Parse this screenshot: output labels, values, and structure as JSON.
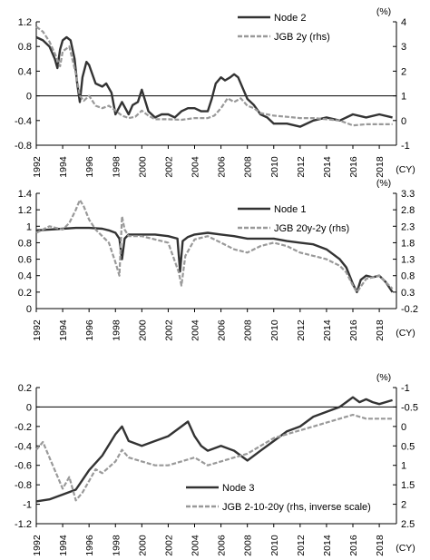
{
  "chart_data": [
    {
      "type": "line",
      "x_ticks": [
        "1992",
        "1994",
        "1996",
        "1998",
        "2000",
        "2002",
        "2004",
        "2006",
        "2008",
        "2010",
        "2012",
        "2014",
        "2016",
        "2018"
      ],
      "x_unit": "(CY)",
      "left_axis": {
        "ticks": [
          "1.2",
          "0.8",
          "0.4",
          "0",
          "-0.4",
          "-0.8"
        ],
        "ylim": [
          -0.8,
          1.2
        ]
      },
      "right_axis": {
        "unit": "(%)",
        "ticks": [
          "4",
          "3",
          "2",
          "1",
          "0",
          "-1"
        ],
        "ylim": [
          -1,
          4
        ]
      },
      "grid": false,
      "legend_position": "top-right",
      "series": [
        {
          "name": "Node 2",
          "axis": "left",
          "color": "#333333",
          "dash": "solid",
          "x": [
            1992,
            1992.5,
            1993,
            1993.4,
            1993.6,
            1993.8,
            1994,
            1994.3,
            1994.6,
            1994.9,
            1995.1,
            1995.3,
            1995.5,
            1995.8,
            1996,
            1996.5,
            1997,
            1997.3,
            1997.7,
            1998,
            1998.5,
            1999,
            1999.3,
            1999.7,
            2000,
            2000.5,
            2001,
            2001.5,
            2002,
            2002.5,
            2003,
            2003.5,
            2004,
            2004.5,
            2005,
            2005.3,
            2005.6,
            2006,
            2006.3,
            2006.7,
            2007,
            2007.3,
            2007.7,
            2008,
            2008.5,
            2009,
            2009.5,
            2010,
            2011,
            2012,
            2013,
            2014,
            2015,
            2016,
            2017,
            2018,
            2019
          ],
          "values": [
            0.95,
            0.9,
            0.8,
            0.6,
            0.45,
            0.75,
            0.9,
            0.95,
            0.9,
            0.6,
            0.2,
            -0.1,
            0.3,
            0.55,
            0.5,
            0.2,
            0.15,
            0.2,
            0.05,
            -0.3,
            -0.1,
            -0.3,
            -0.15,
            -0.1,
            0.1,
            -0.25,
            -0.35,
            -0.3,
            -0.3,
            -0.35,
            -0.25,
            -0.2,
            -0.2,
            -0.25,
            -0.25,
            -0.05,
            0.2,
            0.3,
            0.25,
            0.3,
            0.35,
            0.3,
            0.1,
            -0.05,
            -0.15,
            -0.3,
            -0.35,
            -0.45,
            -0.45,
            -0.5,
            -0.4,
            -0.35,
            -0.4,
            -0.3,
            -0.35,
            -0.3,
            -0.35
          ]
        },
        {
          "name": "JGB 2y (rhs)",
          "axis": "right",
          "color": "#999999",
          "dash": "dashed",
          "x": [
            1992,
            1992.5,
            1993,
            1993.5,
            1993.8,
            1994,
            1994.5,
            1995,
            1995.3,
            1995.6,
            1996,
            1996.5,
            1997,
            1997.5,
            1998,
            1998.5,
            1999,
            1999.5,
            2000,
            2000.5,
            2001,
            2002,
            2003,
            2004,
            2005,
            2005.5,
            2006,
            2006.5,
            2007,
            2007.5,
            2008,
            2008.5,
            2009,
            2010,
            2011,
            2012,
            2013,
            2014,
            2015,
            2016,
            2017,
            2018,
            2019
          ],
          "values": [
            3.8,
            3.6,
            3.2,
            2.6,
            2.2,
            2.8,
            3.0,
            1.9,
            1.0,
            0.8,
            1.0,
            0.6,
            0.5,
            0.6,
            0.4,
            0.2,
            0.1,
            0.15,
            0.4,
            0.2,
            0.05,
            0.05,
            0.03,
            0.1,
            0.1,
            0.2,
            0.5,
            0.9,
            0.75,
            0.9,
            0.6,
            0.5,
            0.3,
            0.2,
            0.15,
            0.1,
            0.1,
            0.05,
            0.0,
            -0.2,
            -0.15,
            -0.15,
            -0.15
          ]
        }
      ]
    },
    {
      "type": "line",
      "x_ticks": [
        "1992",
        "1994",
        "1996",
        "1998",
        "2000",
        "2002",
        "2004",
        "2006",
        "2008",
        "2010",
        "2012",
        "2014",
        "2016",
        "2018"
      ],
      "x_unit": "(CY)",
      "left_axis": {
        "ticks": [
          "1.4",
          "1.2",
          "1",
          "0.8",
          "0.6",
          "0.4",
          "0.2",
          "0"
        ],
        "ylim": [
          0,
          1.4
        ]
      },
      "right_axis": {
        "unit": "(%)",
        "ticks": [
          "3.3",
          "2.8",
          "2.3",
          "1.8",
          "1.3",
          "0.8",
          "0.3",
          "-0.2"
        ],
        "ylim": [
          -0.2,
          3.3
        ]
      },
      "grid": false,
      "legend_position": "top-right",
      "series": [
        {
          "name": "Node 1",
          "axis": "left",
          "color": "#333333",
          "dash": "solid",
          "x": [
            1992,
            1993,
            1994,
            1995,
            1996,
            1997,
            1997.5,
            1998,
            1998.3,
            1998.5,
            1998.7,
            1999,
            2000,
            2001,
            2002,
            2002.7,
            2002.9,
            2003.1,
            2003.5,
            2004,
            2005,
            2006,
            2007,
            2008,
            2009,
            2010,
            2011,
            2012,
            2013,
            2014,
            2015,
            2015.5,
            2016,
            2016.3,
            2016.6,
            2017,
            2017.5,
            2018,
            2018.5,
            2019
          ],
          "values": [
            0.95,
            0.96,
            0.97,
            0.98,
            0.98,
            0.97,
            0.95,
            0.92,
            0.85,
            0.6,
            0.85,
            0.9,
            0.9,
            0.9,
            0.88,
            0.85,
            0.45,
            0.82,
            0.87,
            0.9,
            0.92,
            0.9,
            0.88,
            0.85,
            0.85,
            0.85,
            0.82,
            0.8,
            0.78,
            0.72,
            0.6,
            0.5,
            0.3,
            0.2,
            0.35,
            0.4,
            0.38,
            0.4,
            0.32,
            0.2
          ]
        },
        {
          "name": "JGB 20y-2y (rhs)",
          "axis": "right",
          "color": "#999999",
          "dash": "dashed",
          "x": [
            1992,
            1993,
            1994,
            1994.5,
            1995,
            1995.3,
            1995.6,
            1996,
            1996.5,
            1997,
            1997.5,
            1998,
            1998.3,
            1998.5,
            1998.7,
            1999,
            2000,
            2001,
            2002,
            2002.8,
            2003,
            2003.3,
            2004,
            2005,
            2006,
            2007,
            2008,
            2009,
            2010,
            2011,
            2012,
            2013,
            2014,
            2015,
            2015.5,
            2016,
            2016.3,
            2017,
            2018,
            2018.5,
            2019
          ],
          "values": [
            2.1,
            2.3,
            2.2,
            2.4,
            2.8,
            3.1,
            2.9,
            2.5,
            2.2,
            2.0,
            1.8,
            1.2,
            0.8,
            2.6,
            2.2,
            2.0,
            2.0,
            1.9,
            1.8,
            0.9,
            0.5,
            1.4,
            1.9,
            2.0,
            1.8,
            1.6,
            1.5,
            1.7,
            1.8,
            1.7,
            1.5,
            1.4,
            1.3,
            1.1,
            0.9,
            0.5,
            0.3,
            0.7,
            0.8,
            0.6,
            0.4
          ]
        }
      ]
    },
    {
      "type": "line",
      "x_ticks": [
        "1992",
        "1994",
        "1996",
        "1998",
        "2000",
        "2002",
        "2004",
        "2006",
        "2008",
        "2010",
        "2012",
        "2014",
        "2016",
        "2018"
      ],
      "x_unit": "(CY)",
      "left_axis": {
        "ticks": [
          "0.2",
          "0",
          "-0.2",
          "-0.4",
          "-0.6",
          "-0.8",
          "-1",
          "-1.2"
        ],
        "ylim": [
          -1.2,
          0.2
        ]
      },
      "right_axis": {
        "unit": "(%)",
        "ticks": [
          "-1",
          "-0.5",
          "0",
          "0.5",
          "1",
          "1.5",
          "2",
          "2.5"
        ],
        "ylim": [
          2.5,
          -1
        ],
        "inverse": true
      },
      "grid": false,
      "legend_position": "bottom-right",
      "series": [
        {
          "name": "Node 3",
          "axis": "left",
          "color": "#333333",
          "dash": "solid",
          "x": [
            1992,
            1993,
            1994,
            1995,
            1995.5,
            1996,
            1997,
            1998,
            1998.5,
            1999,
            2000,
            2001,
            2002,
            2003,
            2003.5,
            2004,
            2004.5,
            2005,
            2006,
            2007,
            2008,
            2009,
            2010,
            2011,
            2012,
            2013,
            2014,
            2015,
            2015.5,
            2016,
            2016.5,
            2017,
            2017.5,
            2018,
            2019
          ],
          "values": [
            -0.97,
            -0.95,
            -0.9,
            -0.85,
            -0.75,
            -0.65,
            -0.5,
            -0.28,
            -0.2,
            -0.35,
            -0.4,
            -0.35,
            -0.3,
            -0.2,
            -0.15,
            -0.3,
            -0.4,
            -0.45,
            -0.4,
            -0.45,
            -0.55,
            -0.45,
            -0.35,
            -0.25,
            -0.2,
            -0.1,
            -0.05,
            0.0,
            0.05,
            0.1,
            0.05,
            0.08,
            0.05,
            0.03,
            0.07
          ]
        },
        {
          "name": "JGB 2-10-20y (rhs, inverse scale)",
          "axis": "right",
          "color": "#999999",
          "dash": "dashed",
          "x": [
            1992,
            1992.5,
            1993,
            1993.5,
            1994,
            1994.5,
            1995,
            1995.5,
            1996,
            1996.5,
            1997,
            1998,
            1998.5,
            1999,
            2000,
            2001,
            2002,
            2003,
            2004,
            2005,
            2006,
            2007,
            2008,
            2009,
            2010,
            2011,
            2012,
            2013,
            2014,
            2015,
            2016,
            2017,
            2018,
            2019
          ],
          "values": [
            0.6,
            0.4,
            0.8,
            1.2,
            1.6,
            1.3,
            1.9,
            1.7,
            1.4,
            1.1,
            1.2,
            0.9,
            0.6,
            0.8,
            0.9,
            1.0,
            1.0,
            0.9,
            0.8,
            1.0,
            0.9,
            0.8,
            0.7,
            0.5,
            0.3,
            0.2,
            0.1,
            0.0,
            -0.1,
            -0.2,
            -0.3,
            -0.2,
            -0.2,
            -0.2
          ]
        }
      ]
    }
  ]
}
